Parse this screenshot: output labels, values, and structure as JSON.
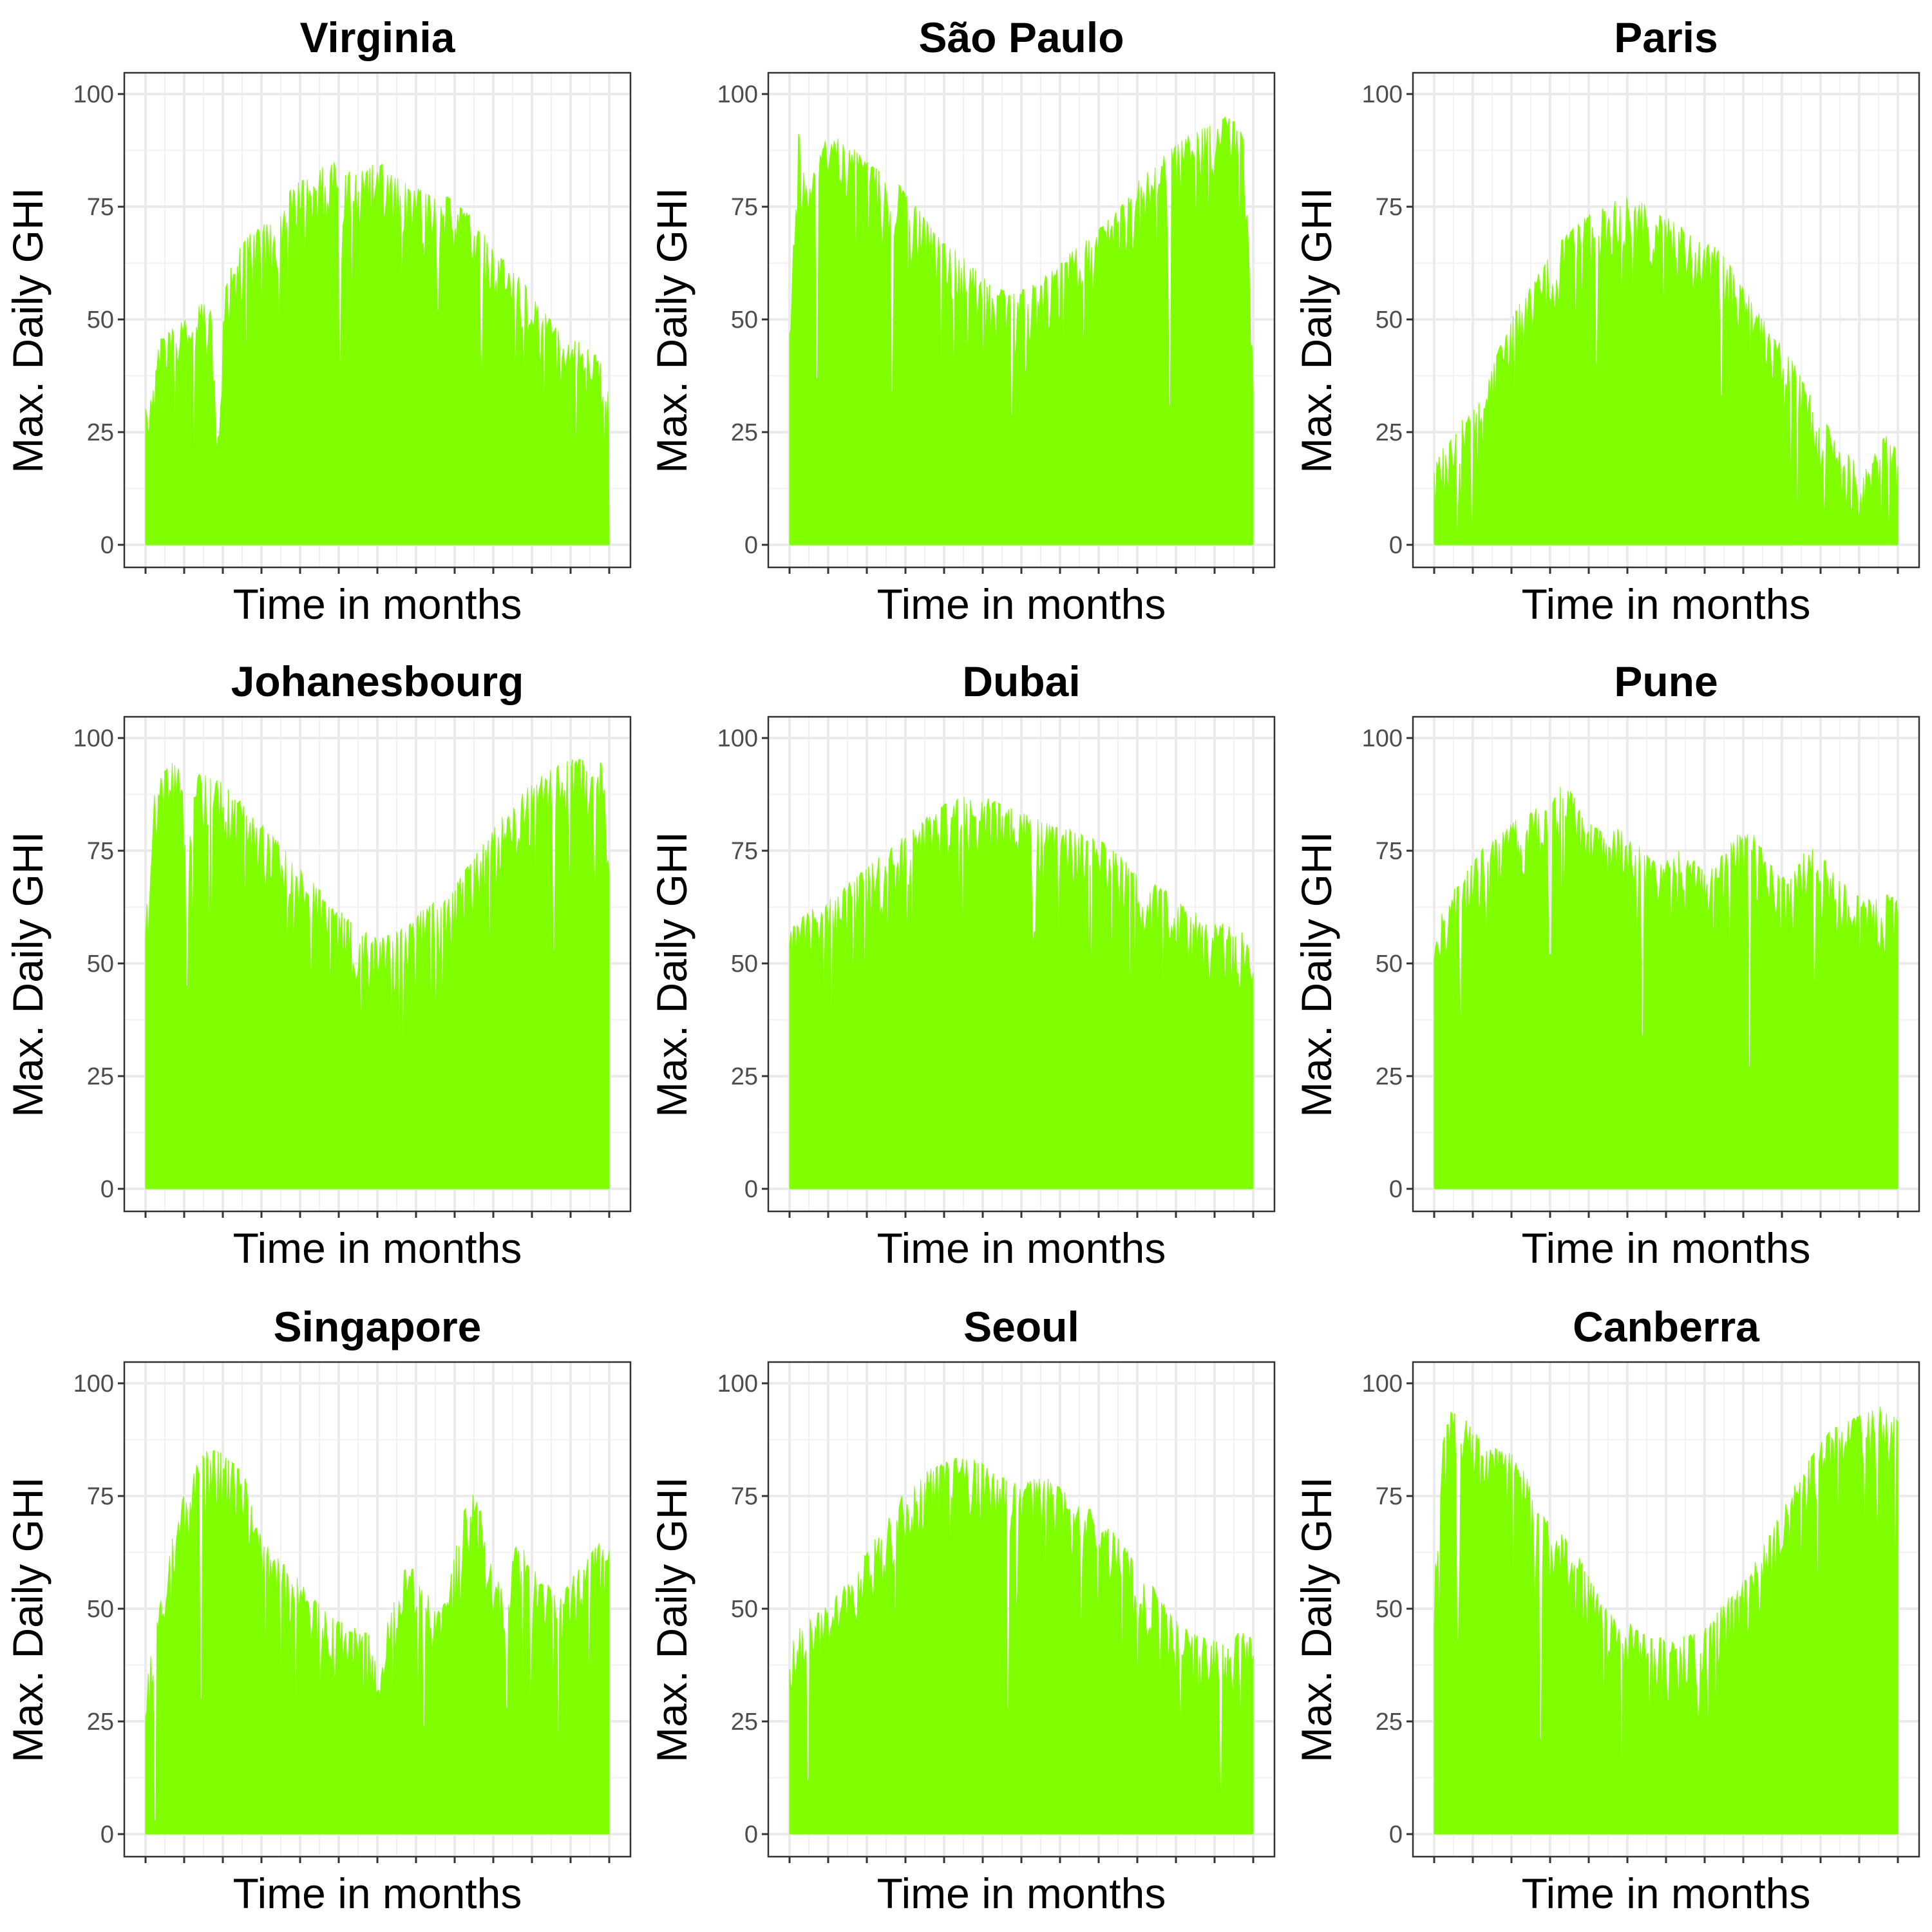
{
  "figure": {
    "fill_color": "#7FFF00",
    "x_ticks_per_panel": 13,
    "x_ticks_labeled": false
  },
  "chart_data": [
    {
      "type": "area",
      "title": "Virginia",
      "xlabel": "Time in months",
      "ylabel": "Max. Daily GHI",
      "ylim": [
        0,
        105
      ],
      "yticks": [
        0,
        25,
        50,
        75,
        100
      ],
      "grid": true,
      "legend": "none",
      "envelope": [
        31,
        33,
        45,
        47,
        48,
        49,
        50,
        51,
        53,
        54,
        56,
        20,
        57,
        63,
        65,
        67,
        69,
        70,
        71,
        72,
        73,
        77,
        79,
        80,
        81,
        82,
        83,
        84,
        84,
        85,
        84,
        83,
        82,
        83,
        84,
        85,
        85,
        83,
        82,
        81,
        80,
        79,
        79,
        78,
        77,
        77,
        78,
        76,
        75,
        74,
        73,
        70,
        69,
        67,
        65,
        63,
        61,
        60,
        58,
        56,
        54,
        52,
        50,
        48,
        47,
        46,
        45,
        45,
        44,
        43,
        42,
        32
      ],
      "dips": [
        {
          "t": 0.42,
          "v": 41
        },
        {
          "t": 0.19,
          "v": 60
        },
        {
          "t": 0.63,
          "v": 52
        }
      ]
    },
    {
      "type": "area",
      "title": "São Paulo",
      "xlabel": "Time in months",
      "ylabel": "Max. Daily GHI",
      "ylim": [
        0,
        105
      ],
      "yticks": [
        0,
        25,
        50,
        75,
        100
      ],
      "grid": true,
      "legend": "none",
      "envelope": [
        48,
        92,
        78,
        85,
        90,
        91,
        89,
        88,
        86,
        84,
        83,
        82,
        80,
        77,
        75,
        72,
        70,
        68,
        66,
        64,
        62,
        60,
        58,
        57,
        56,
        56,
        57,
        58,
        60,
        61,
        63,
        65,
        67,
        68,
        70,
        72,
        74,
        77,
        80,
        82,
        84,
        86,
        88,
        90,
        91,
        92,
        93,
        94,
        95,
        94,
        92,
        40
      ],
      "dips": [
        {
          "t": 0.06,
          "v": 37
        },
        {
          "t": 0.22,
          "v": 34
        },
        {
          "t": 0.48,
          "v": 29
        },
        {
          "t": 0.82,
          "v": 31
        }
      ]
    },
    {
      "type": "area",
      "title": "Paris",
      "xlabel": "Time in months",
      "ylabel": "Max. Daily GHI",
      "ylim": [
        0,
        105
      ],
      "yticks": [
        0,
        25,
        50,
        75,
        100
      ],
      "grid": true,
      "legend": "none",
      "envelope": [
        18,
        22,
        26,
        28,
        30,
        34,
        40,
        46,
        51,
        55,
        58,
        62,
        65,
        68,
        70,
        72,
        74,
        75,
        76,
        78,
        77,
        76,
        75,
        74,
        72,
        71,
        70,
        68,
        67,
        65,
        62,
        58,
        55,
        51,
        48,
        45,
        42,
        38,
        34,
        30,
        26,
        22,
        20,
        18,
        17,
        22,
        25,
        20
      ],
      "dips": [
        {
          "t": 0.08,
          "v": 7
        },
        {
          "t": 0.35,
          "v": 40
        },
        {
          "t": 0.62,
          "v": 33
        },
        {
          "t": 0.9,
          "v": 8
        }
      ]
    },
    {
      "type": "area",
      "title": "Johanesbourg",
      "xlabel": "Time in months",
      "ylabel": "Max. Daily GHI",
      "ylim": [
        0,
        105
      ],
      "yticks": [
        0,
        25,
        50,
        75,
        100
      ],
      "grid": true,
      "legend": "none",
      "envelope": [
        59,
        88,
        92,
        95,
        93,
        78,
        92,
        92,
        91,
        90,
        88,
        86,
        84,
        82,
        80,
        78,
        76,
        73,
        71,
        69,
        67,
        65,
        63,
        61,
        59,
        58,
        57,
        56,
        56,
        57,
        58,
        60,
        62,
        63,
        64,
        65,
        67,
        70,
        73,
        76,
        79,
        82,
        84,
        85,
        88,
        90,
        92,
        93,
        94,
        95,
        96,
        95,
        94,
        96,
        78
      ],
      "dips": [
        {
          "t": 0.09,
          "v": 45
        },
        {
          "t": 0.88,
          "v": 53
        }
      ]
    },
    {
      "type": "area",
      "title": "Dubai",
      "xlabel": "Time in months",
      "ylabel": "Max. Daily GHI",
      "ylim": [
        0,
        105
      ],
      "yticks": [
        0,
        25,
        50,
        75,
        100
      ],
      "grid": true,
      "legend": "none",
      "envelope": [
        58,
        60,
        62,
        63,
        65,
        67,
        69,
        71,
        73,
        75,
        77,
        79,
        81,
        83,
        85,
        86,
        87,
        87,
        87,
        86,
        85,
        84,
        83,
        82,
        81,
        80,
        80,
        79,
        78,
        77,
        75,
        73,
        71,
        70,
        68,
        66,
        64,
        62,
        61,
        60,
        59,
        58,
        57,
        52
      ],
      "dips": [
        {
          "t": 0.53,
          "v": 57
        },
        {
          "t": 0.97,
          "v": 45
        }
      ]
    },
    {
      "type": "area",
      "title": "Pune",
      "xlabel": "Time in months",
      "ylabel": "Max. Daily GHI",
      "ylim": [
        0,
        105
      ],
      "yticks": [
        0,
        25,
        50,
        75,
        100
      ],
      "grid": true,
      "legend": "none",
      "envelope": [
        56,
        62,
        66,
        69,
        72,
        75,
        77,
        78,
        80,
        82,
        83,
        84,
        86,
        88,
        90,
        88,
        85,
        82,
        80,
        78,
        80,
        79,
        77,
        75,
        73,
        74,
        76,
        75,
        74,
        72,
        70,
        72,
        75,
        78,
        80,
        79,
        76,
        73,
        70,
        68,
        72,
        76,
        75,
        73,
        70,
        68,
        66,
        65,
        64,
        65,
        66,
        64
      ],
      "dips": [
        {
          "t": 0.45,
          "v": 34
        },
        {
          "t": 0.68,
          "v": 27
        },
        {
          "t": 0.82,
          "v": 46
        },
        {
          "t": 0.25,
          "v": 52
        }
      ]
    },
    {
      "type": "area",
      "title": "Singapore",
      "xlabel": "Time in months",
      "ylabel": "Max. Daily GHI",
      "ylim": [
        0,
        105
      ],
      "yticks": [
        0,
        25,
        50,
        75,
        100
      ],
      "grid": true,
      "legend": "none",
      "envelope": [
        32,
        48,
        55,
        70,
        76,
        82,
        85,
        86,
        84,
        82,
        80,
        70,
        65,
        62,
        60,
        58,
        55,
        53,
        50,
        48,
        47,
        46,
        45,
        44,
        45,
        50,
        58,
        60,
        55,
        52,
        50,
        58,
        70,
        76,
        72,
        60,
        55,
        62,
        65,
        60,
        58,
        55,
        52,
        56,
        60,
        62,
        65,
        63
      ],
      "dips": [
        {
          "t": 0.02,
          "v": 3
        },
        {
          "t": 0.12,
          "v": 30
        },
        {
          "t": 0.6,
          "v": 24
        },
        {
          "t": 0.78,
          "v": 28
        }
      ]
    },
    {
      "type": "area",
      "title": "Seoul",
      "xlabel": "Time in months",
      "ylabel": "Max. Daily GHI",
      "ylim": [
        0,
        105
      ],
      "yticks": [
        0,
        25,
        50,
        75,
        100
      ],
      "grid": true,
      "legend": "none",
      "envelope": [
        44,
        46,
        48,
        50,
        52,
        55,
        58,
        62,
        66,
        70,
        74,
        77,
        79,
        81,
        82,
        83,
        84,
        84,
        82,
        80,
        79,
        78,
        78,
        79,
        79,
        77,
        75,
        74,
        72,
        70,
        67,
        64,
        60,
        57,
        54,
        50,
        47,
        45,
        44,
        43,
        43,
        44,
        45,
        43
      ],
      "dips": [
        {
          "t": 0.04,
          "v": 12
        },
        {
          "t": 0.47,
          "v": 28
        },
        {
          "t": 0.93,
          "v": 10
        }
      ]
    },
    {
      "type": "area",
      "title": "Canberra",
      "xlabel": "Time in months",
      "ylabel": "Max. Daily GHI",
      "ylim": [
        0,
        105
      ],
      "yticks": [
        0,
        25,
        50,
        75,
        100
      ],
      "grid": true,
      "legend": "none",
      "envelope": [
        55,
        92,
        94,
        93,
        90,
        88,
        87,
        86,
        85,
        83,
        79,
        73,
        70,
        68,
        66,
        64,
        60,
        56,
        52,
        50,
        48,
        47,
        45,
        44,
        44,
        43,
        43,
        44,
        45,
        46,
        48,
        51,
        53,
        55,
        58,
        62,
        66,
        70,
        74,
        78,
        82,
        85,
        88,
        90,
        91,
        92,
        93,
        94,
        95,
        94,
        93
      ],
      "dips": [
        {
          "t": 0.05,
          "v": 43
        },
        {
          "t": 0.23,
          "v": 21
        },
        {
          "t": 0.57,
          "v": 26
        }
      ]
    }
  ]
}
